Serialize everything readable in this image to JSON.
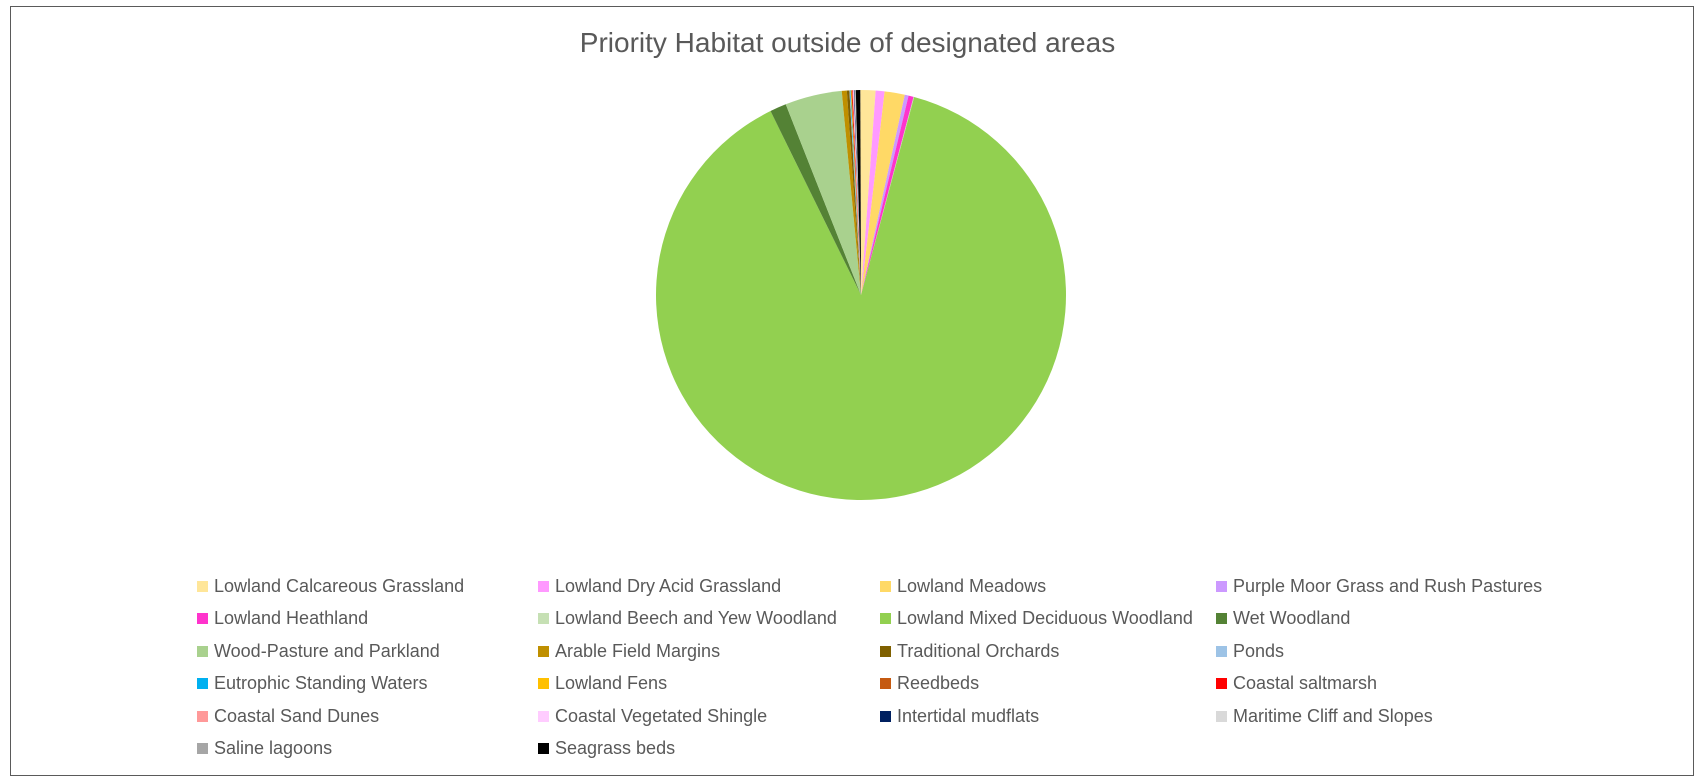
{
  "chart_data": {
    "type": "pie",
    "title": "Priority Habitat outside of designated areas",
    "legend_position": "bottom",
    "series": [
      {
        "name": "Lowland Calcareous Grassland",
        "value": 1.2,
        "color": "#ffe699"
      },
      {
        "name": "Lowland Dry Acid Grassland",
        "value": 0.7,
        "color": "#ff99ff"
      },
      {
        "name": "Lowland Meadows",
        "value": 1.6,
        "color": "#ffd966"
      },
      {
        "name": "Purple Moor Grass and Rush Pastures",
        "value": 0.3,
        "color": "#cc99ff"
      },
      {
        "name": "Lowland Heathland",
        "value": 0.4,
        "color": "#ff33cc"
      },
      {
        "name": "Lowland Beech and Yew Woodland",
        "value": 0.05,
        "color": "#c6e0b4"
      },
      {
        "name": "Lowland Mixed Deciduous Woodland",
        "value": 88.9,
        "color": "#92d050"
      },
      {
        "name": "Wet Woodland",
        "value": 1.3,
        "color": "#548235"
      },
      {
        "name": "Wood-Pasture and Parkland",
        "value": 4.5,
        "color": "#a9d18e"
      },
      {
        "name": "Arable Field Margins",
        "value": 0.4,
        "color": "#bf8f00"
      },
      {
        "name": "Traditional Orchards",
        "value": 0.2,
        "color": "#7f6000"
      },
      {
        "name": "Ponds",
        "value": 0.05,
        "color": "#9dc3e6"
      },
      {
        "name": "Eutrophic Standing Waters",
        "value": 0.05,
        "color": "#00b0f0"
      },
      {
        "name": "Lowland Fens",
        "value": 0.05,
        "color": "#ffc000"
      },
      {
        "name": "Reedbeds",
        "value": 0.05,
        "color": "#c55a11"
      },
      {
        "name": "Coastal saltmarsh",
        "value": 0.05,
        "color": "#ff0000"
      },
      {
        "name": "Coastal Sand Dunes",
        "value": 0.05,
        "color": "#ff9999"
      },
      {
        "name": "Coastal Vegetated Shingle",
        "value": 0.05,
        "color": "#ffccff"
      },
      {
        "name": "Intertidal mudflats",
        "value": 0.05,
        "color": "#002060"
      },
      {
        "name": "Maritime Cliff and Slopes",
        "value": 0.05,
        "color": "#d9d9d9"
      },
      {
        "name": "Saline lagoons",
        "value": 0.05,
        "color": "#a6a6a6"
      },
      {
        "name": "Seagrass beds",
        "value": 0.35,
        "color": "#000000"
      }
    ]
  }
}
